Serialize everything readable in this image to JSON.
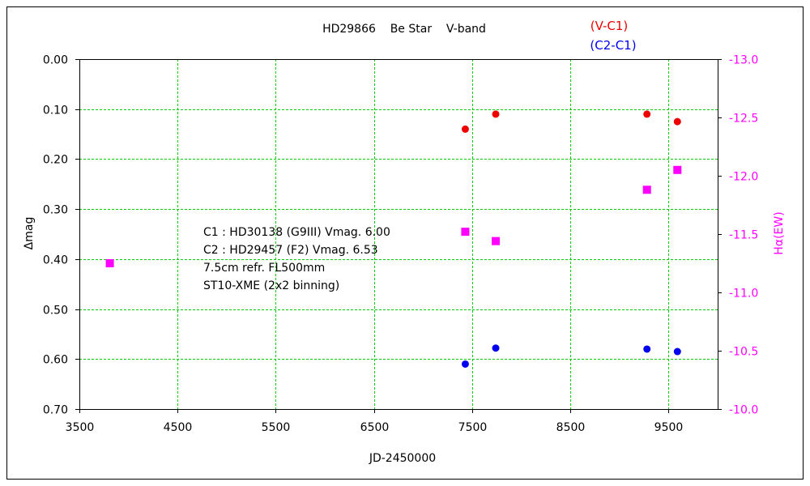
{
  "chart_data": {
    "type": "scatter",
    "title": "HD29866    Be Star    V-band",
    "xlabel": "JD-2450000",
    "ylabel_left": "Δmag",
    "ylabel_right": "Hα(EW)",
    "xlim": [
      3500,
      10000
    ],
    "x_ticks": [
      3500,
      4500,
      5500,
      6500,
      7500,
      8500,
      9500
    ],
    "x_tick_labels": [
      "3500",
      "4500",
      "5500",
      "6500",
      "7500",
      "8500",
      "9500"
    ],
    "ylim_left": [
      0.0,
      0.7
    ],
    "y_left_ticks": [
      0.0,
      0.1,
      0.2,
      0.3,
      0.4,
      0.5,
      0.6,
      0.7
    ],
    "y_left_tick_labels": [
      "0.00",
      "0.10",
      "0.20",
      "0.30",
      "0.40",
      "0.50",
      "0.60",
      "0.70"
    ],
    "y_left_inverted": true,
    "ylim_right": [
      -13.0,
      -10.0
    ],
    "y_right_ticks": [
      -13.0,
      -12.5,
      -12.0,
      -11.5,
      -11.0,
      -10.5,
      -10.0
    ],
    "y_right_tick_labels": [
      "-13.0",
      "-12.5",
      "-12.0",
      "-11.5",
      "-11.0",
      "-10.5",
      "-10.0"
    ],
    "grid": true,
    "legend": [
      "(V-C1)",
      "(C2-C1)"
    ],
    "legend_position": "top-right",
    "annotation": [
      "C1 : HD30138 (G9III) Vmag. 6.00",
      "C2 : HD29457 (F2) Vmag. 6.53",
      "7.5cm refr. FL500mm",
      "ST10-XME (2x2 binning)"
    ],
    "series": [
      {
        "name": "(V-C1)",
        "axis": "left",
        "marker": "circle",
        "color": "#ee0000",
        "x": [
          7430,
          7740,
          9280,
          9590
        ],
        "y": [
          0.14,
          0.11,
          0.11,
          0.125
        ]
      },
      {
        "name": "(C2-C1)",
        "axis": "left",
        "marker": "circle",
        "color": "#0000ee",
        "x": [
          7430,
          7740,
          9280,
          9590
        ],
        "y": [
          0.61,
          0.578,
          0.58,
          0.585
        ]
      },
      {
        "name": "Hα(EW)",
        "axis": "right",
        "marker": "square",
        "color": "#ff00ff",
        "x": [
          3810,
          7430,
          7740,
          9280,
          9590
        ],
        "y": [
          -11.25,
          -11.52,
          -11.44,
          -11.88,
          -12.05
        ]
      }
    ]
  },
  "colors": {
    "grid": "#00cc00",
    "axis": "#000000",
    "right_axis_text": "#ff00ff"
  }
}
